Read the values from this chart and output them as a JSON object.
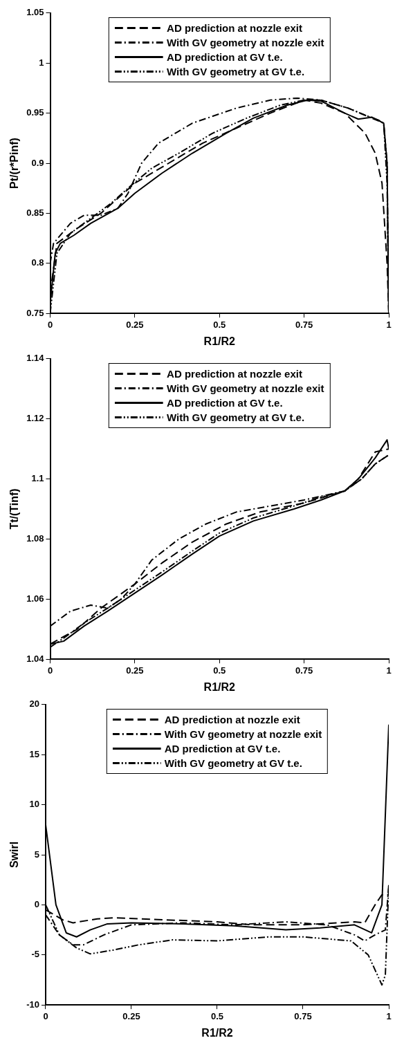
{
  "chart_data": [
    {
      "type": "line",
      "xlabel": "R1/R2",
      "ylabel": "Pt/(r*Pinf)",
      "xlim": [
        0,
        1
      ],
      "xticks": [
        0,
        0.25,
        0.5,
        0.75,
        1
      ],
      "ylim": [
        0.75,
        1.05
      ],
      "yticks": [
        0.75,
        0.8,
        0.85,
        0.9,
        0.95,
        1,
        1.05
      ],
      "grid": false,
      "legend": "top",
      "marker": "none",
      "series": [
        {
          "name": "AD prediction at nozzle exit",
          "color": "#000000",
          "line_style": "dashed",
          "x": [
            0,
            0.02,
            0.08,
            0.15,
            0.2,
            0.25,
            0.35,
            0.45,
            0.55,
            0.65,
            0.75,
            0.8,
            0.87,
            0.93,
            0.96,
            0.98,
            0.995,
            1
          ],
          "values": [
            0.77,
            0.82,
            0.835,
            0.85,
            0.865,
            0.88,
            0.9,
            0.92,
            0.935,
            0.95,
            0.963,
            0.96,
            0.95,
            0.93,
            0.91,
            0.88,
            0.8,
            0.75
          ]
        },
        {
          "name": "With GV geometry at nozzle exit",
          "color": "#000000",
          "line_style": "dashdot",
          "x": [
            0,
            0.01,
            0.06,
            0.1,
            0.15,
            0.2,
            0.23,
            0.27,
            0.32,
            0.42,
            0.55,
            0.65,
            0.73,
            0.8,
            0.88,
            0.95,
            0.985,
            0.995,
            1
          ],
          "values": [
            0.8,
            0.82,
            0.84,
            0.848,
            0.848,
            0.855,
            0.87,
            0.9,
            0.92,
            0.94,
            0.955,
            0.963,
            0.965,
            0.963,
            0.955,
            0.945,
            0.94,
            0.9,
            0.75
          ]
        },
        {
          "name": "AD prediction at GV t.e.",
          "color": "#000000",
          "line_style": "solid",
          "x": [
            0,
            0.015,
            0.03,
            0.07,
            0.12,
            0.2,
            0.25,
            0.33,
            0.42,
            0.52,
            0.6,
            0.7,
            0.76,
            0.8,
            0.87,
            0.91,
            0.95,
            0.985,
            0.995,
            1
          ],
          "values": [
            0.76,
            0.81,
            0.82,
            0.828,
            0.84,
            0.855,
            0.87,
            0.89,
            0.91,
            0.93,
            0.945,
            0.958,
            0.963,
            0.962,
            0.95,
            0.944,
            0.946,
            0.94,
            0.9,
            0.75
          ]
        },
        {
          "name": "With GV geometry at GV t.e.",
          "color": "#000000",
          "line_style": "dashdotdot",
          "x": [
            0,
            0.02,
            0.06,
            0.12,
            0.18,
            0.24,
            0.3,
            0.38,
            0.48,
            0.58,
            0.68,
            0.75,
            0.8,
            0.88,
            0.93,
            0.97,
            0.985,
            0.995,
            1
          ],
          "values": [
            0.75,
            0.81,
            0.83,
            0.845,
            0.86,
            0.878,
            0.895,
            0.91,
            0.93,
            0.945,
            0.958,
            0.963,
            0.963,
            0.955,
            0.948,
            0.943,
            0.94,
            0.88,
            0.75
          ]
        }
      ]
    },
    {
      "type": "line",
      "xlabel": "R1/R2",
      "ylabel": "Tt/(Tinf)",
      "xlim": [
        0,
        1
      ],
      "xticks": [
        0,
        0.25,
        0.5,
        0.75,
        1
      ],
      "ylim": [
        1.04,
        1.14
      ],
      "yticks": [
        1.04,
        1.06,
        1.08,
        1.1,
        1.12,
        1.14
      ],
      "grid": false,
      "legend": "top",
      "marker": "none",
      "series": [
        {
          "name": "AD prediction at nozzle exit",
          "color": "#000000",
          "line_style": "dashed",
          "x": [
            0,
            0.08,
            0.15,
            0.25,
            0.33,
            0.42,
            0.52,
            0.62,
            0.75,
            0.87,
            0.91,
            0.96,
            1
          ],
          "values": [
            1.045,
            1.05,
            1.057,
            1.065,
            1.072,
            1.079,
            1.085,
            1.089,
            1.092,
            1.096,
            1.1,
            1.109,
            1.11
          ]
        },
        {
          "name": "With GV geometry at nozzle exit",
          "color": "#000000",
          "line_style": "dashdot",
          "x": [
            0,
            0.06,
            0.12,
            0.17,
            0.21,
            0.25,
            0.3,
            0.38,
            0.46,
            0.55,
            0.65,
            0.75,
            0.87,
            0.92,
            0.96,
            1
          ],
          "values": [
            1.051,
            1.056,
            1.058,
            1.057,
            1.06,
            1.065,
            1.073,
            1.08,
            1.085,
            1.089,
            1.091,
            1.093,
            1.096,
            1.1,
            1.105,
            1.108
          ]
        },
        {
          "name": "AD prediction at GV t.e.",
          "color": "#000000",
          "line_style": "solid",
          "x": [
            0,
            0.04,
            0.1,
            0.17,
            0.25,
            0.33,
            0.42,
            0.5,
            0.6,
            0.72,
            0.8,
            0.87,
            0.91,
            0.96,
            0.995,
            1
          ],
          "values": [
            1.045,
            1.046,
            1.051,
            1.056,
            1.062,
            1.068,
            1.075,
            1.081,
            1.086,
            1.09,
            1.093,
            1.096,
            1.1,
            1.107,
            1.113,
            1.11
          ]
        },
        {
          "name": "With GV geometry at GV t.e.",
          "color": "#000000",
          "line_style": "dashdotdot",
          "x": [
            0,
            0.04,
            0.1,
            0.17,
            0.25,
            0.33,
            0.42,
            0.5,
            0.6,
            0.72,
            0.8,
            0.87,
            0.92,
            0.96,
            1
          ],
          "values": [
            1.044,
            1.047,
            1.052,
            1.057,
            1.063,
            1.069,
            1.076,
            1.082,
            1.087,
            1.091,
            1.094,
            1.096,
            1.1,
            1.105,
            1.108
          ]
        }
      ]
    },
    {
      "type": "line",
      "xlabel": "R1/R2",
      "ylabel": "Swirl",
      "xlim": [
        0,
        1
      ],
      "xticks": [
        0,
        0.25,
        0.5,
        0.75,
        1
      ],
      "ylim": [
        -10,
        20
      ],
      "yticks": [
        -10,
        -5,
        0,
        5,
        10,
        15,
        20
      ],
      "grid": false,
      "legend": "top",
      "marker": "none",
      "series": [
        {
          "name": "AD prediction at nozzle exit",
          "color": "#000000",
          "line_style": "dashed",
          "x": [
            0,
            0.05,
            0.08,
            0.15,
            0.2,
            0.35,
            0.5,
            0.6,
            0.75,
            0.9,
            0.93,
            0.96,
            0.98,
            1
          ],
          "values": [
            -0.5,
            -1.5,
            -1.8,
            -1.4,
            -1.3,
            -1.5,
            -1.7,
            -2,
            -2,
            -1.7,
            -1.8,
            0,
            1,
            1
          ]
        },
        {
          "name": "With GV geometry at nozzle exit",
          "color": "#000000",
          "line_style": "dashdot",
          "x": [
            0,
            0.04,
            0.08,
            0.11,
            0.17,
            0.25,
            0.4,
            0.55,
            0.7,
            0.82,
            0.9,
            0.93,
            0.96,
            0.99,
            1
          ],
          "values": [
            -1,
            -3,
            -4,
            -4,
            -3,
            -2,
            -1.8,
            -2,
            -1.7,
            -2,
            -3,
            -3.6,
            -3,
            -2.5,
            2
          ]
        },
        {
          "name": "AD prediction at GV t.e.",
          "color": "#000000",
          "line_style": "solid",
          "x": [
            0,
            0.03,
            0.06,
            0.09,
            0.13,
            0.18,
            0.25,
            0.4,
            0.55,
            0.7,
            0.8,
            0.9,
            0.95,
            0.98,
            1
          ],
          "values": [
            8,
            0,
            -2.8,
            -3.2,
            -2.5,
            -1.9,
            -1.8,
            -1.9,
            -2.1,
            -2.5,
            -2.3,
            -2,
            -2.8,
            0,
            18
          ]
        },
        {
          "name": "With GV geometry at GV t.e.",
          "color": "#000000",
          "line_style": "dashdotdot",
          "x": [
            0,
            0.04,
            0.09,
            0.13,
            0.2,
            0.27,
            0.37,
            0.5,
            0.65,
            0.75,
            0.89,
            0.94,
            0.98,
            0.99,
            1
          ],
          "values": [
            0,
            -3,
            -4.3,
            -4.9,
            -4.5,
            -4,
            -3.5,
            -3.6,
            -3.2,
            -3.2,
            -3.6,
            -5,
            -8,
            -7,
            2
          ]
        }
      ]
    }
  ]
}
